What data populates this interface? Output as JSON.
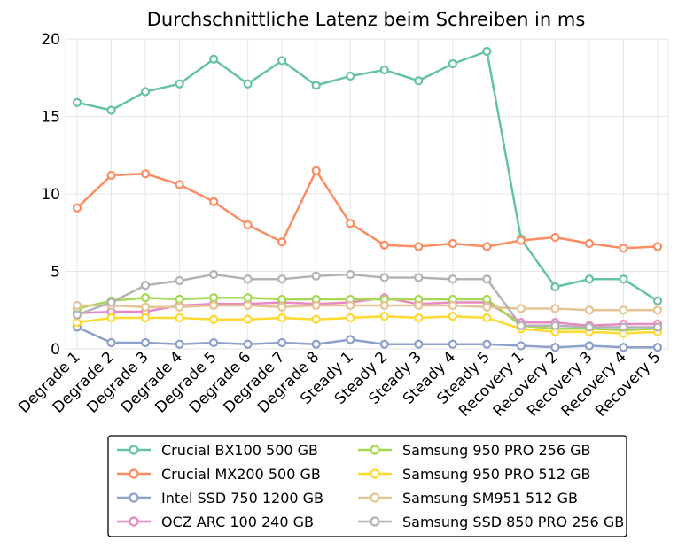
{
  "chart_data": {
    "type": "line",
    "title": "Durchschnittliche Latenz beim Schreiben in ms",
    "xlabel": "",
    "ylabel": "",
    "ylim": [
      0,
      20
    ],
    "yticks": [
      "0",
      "5",
      "10",
      "15",
      "20"
    ],
    "grid": true,
    "legend_position": "bottom",
    "categories": [
      "Degrade 1",
      "Degrade 2",
      "Degrade 3",
      "Degrade 4",
      "Degrade 5",
      "Degrade 6",
      "Degrade 7",
      "Degrade 8",
      "Steady 1",
      "Steady 2",
      "Steady 3",
      "Steady 4",
      "Steady 5",
      "Recovery 1",
      "Recovery 2",
      "Recovery 3",
      "Recovery 4",
      "Recovery 5"
    ],
    "series": [
      {
        "name": "Crucial BX100 500 GB",
        "color": "#66c2a5",
        "values": [
          15.9,
          15.4,
          16.6,
          17.1,
          18.7,
          17.1,
          18.6,
          17.0,
          17.6,
          18.0,
          17.3,
          18.4,
          19.2,
          7.1,
          4.0,
          4.5,
          4.5,
          3.1
        ]
      },
      {
        "name": "Crucial MX200 500 GB",
        "color": "#fc8d62",
        "values": [
          9.1,
          11.2,
          11.3,
          10.6,
          9.5,
          8.0,
          6.9,
          11.5,
          8.1,
          6.7,
          6.6,
          6.8,
          6.6,
          7.0,
          7.2,
          6.8,
          6.5,
          6.6
        ]
      },
      {
        "name": "Intel SSD 750 1200 GB",
        "color": "#8da0cb",
        "values": [
          1.4,
          0.4,
          0.4,
          0.3,
          0.4,
          0.3,
          0.4,
          0.3,
          0.6,
          0.3,
          0.3,
          0.3,
          0.3,
          0.2,
          0.1,
          0.2,
          0.1,
          0.1
        ]
      },
      {
        "name": "OCZ ARC 100 240 GB",
        "color": "#e78ac3",
        "values": [
          2.3,
          2.4,
          2.4,
          2.8,
          2.9,
          2.9,
          3.0,
          2.9,
          3.0,
          3.3,
          2.9,
          3.0,
          3.0,
          1.7,
          1.7,
          1.5,
          1.6,
          1.6
        ]
      },
      {
        "name": "Samsung 950 PRO 256 GB",
        "color": "#a6d854",
        "values": [
          2.6,
          3.1,
          3.3,
          3.2,
          3.3,
          3.3,
          3.2,
          3.2,
          3.2,
          3.2,
          3.2,
          3.2,
          3.2,
          1.5,
          1.3,
          1.3,
          1.2,
          1.3
        ]
      },
      {
        "name": "Samsung 950 PRO 512 GB",
        "color": "#ffd92f",
        "values": [
          1.7,
          2.0,
          2.0,
          2.0,
          1.9,
          1.9,
          2.0,
          1.9,
          2.0,
          2.1,
          2.0,
          2.1,
          2.0,
          1.3,
          1.1,
          1.1,
          1.0,
          1.1
        ]
      },
      {
        "name": "Samsung SM951 512 GB",
        "color": "#e5c494",
        "values": [
          2.8,
          2.8,
          2.7,
          2.7,
          2.8,
          2.8,
          2.7,
          2.8,
          2.8,
          2.8,
          2.8,
          2.8,
          2.7,
          2.6,
          2.6,
          2.5,
          2.5,
          2.5
        ]
      },
      {
        "name": "Samsung SSD 850 PRO 256 GB",
        "color": "#b3b3b3",
        "values": [
          2.2,
          3.0,
          4.1,
          4.4,
          4.8,
          4.5,
          4.5,
          4.7,
          4.8,
          4.6,
          4.6,
          4.5,
          4.5,
          1.5,
          1.5,
          1.4,
          1.4,
          1.4
        ]
      }
    ]
  }
}
